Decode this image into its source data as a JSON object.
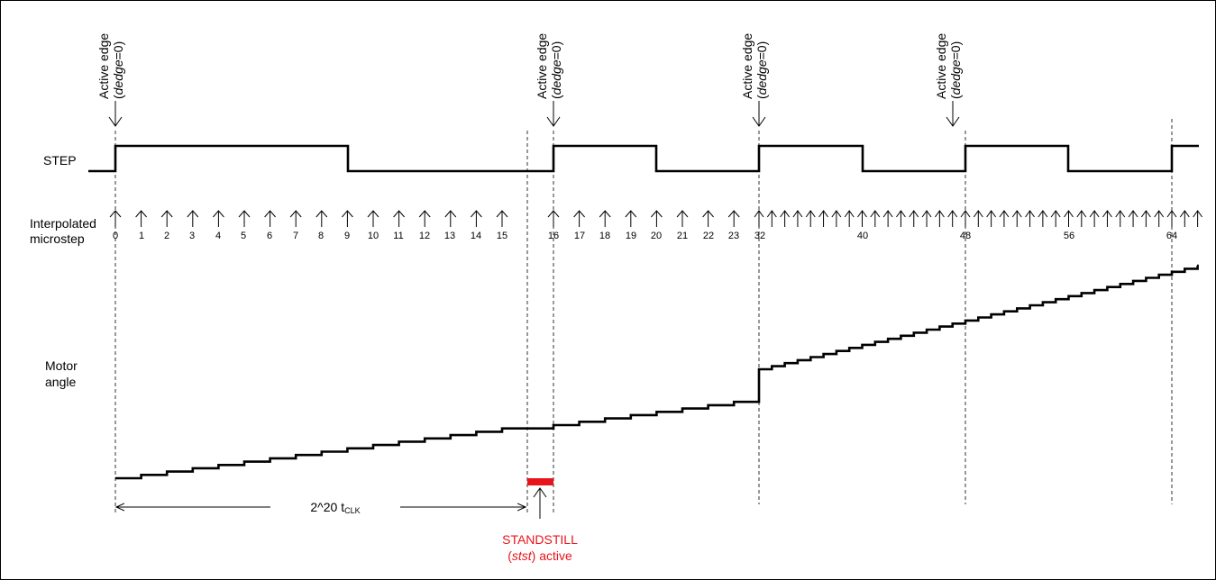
{
  "signals": {
    "step": "STEP",
    "microstep_line1": "Interpolated",
    "microstep_line2": "microstep",
    "motor_line1": "Motor",
    "motor_line2": "angle"
  },
  "edges": [
    {
      "line1": "Active edge",
      "line2_open": "(",
      "line2_italic": "dedge",
      "line2_close": "=0)"
    },
    {
      "line1": "Active edge",
      "line2_open": "(",
      "line2_italic": "dedge",
      "line2_close": "=0)"
    },
    {
      "line1": "Active edge",
      "line2_open": "(",
      "line2_italic": "dedge",
      "line2_close": "=0)"
    },
    {
      "line1": "Active edge",
      "line2_open": "(",
      "line2_italic": "dedge",
      "line2_close": "=0)"
    }
  ],
  "microstep_labels_a": [
    "0",
    "1",
    "2",
    "3",
    "4",
    "5",
    "6",
    "7",
    "8",
    "9",
    "10",
    "11",
    "12",
    "13",
    "14",
    "15"
  ],
  "microstep_labels_b": [
    "16",
    "17",
    "18",
    "19",
    "20",
    "21",
    "22",
    "23"
  ],
  "microstep_labels_c": [
    "32",
    "40",
    "48",
    "56",
    "64"
  ],
  "timing": {
    "label": "2^20 t",
    "subscript": "CLK"
  },
  "standstill": {
    "line1": "STANDSTILL",
    "line2_open": "(",
    "line2_italic": "stst",
    "line2_close": ") active",
    "color": "#e8141b"
  }
}
